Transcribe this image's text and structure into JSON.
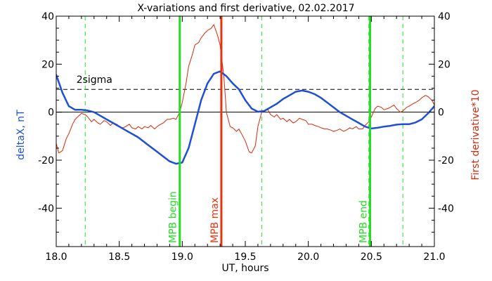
{
  "chart_data": {
    "type": "line",
    "title": "X-variations and first derivative, 02.02.2017",
    "xlabel": "UT, hours",
    "ylabel_left": "deltaX, nT",
    "ylabel_right": "First derivative*10",
    "xlim": [
      18.0,
      21.0
    ],
    "ylim": [
      -56,
      40
    ],
    "x_ticks": [
      18.0,
      18.5,
      19.0,
      19.5,
      20.0,
      20.5,
      21.0
    ],
    "x_tick_labels": [
      "18.0",
      "18.5",
      "19.0",
      "19.5",
      "20.0",
      "20.5",
      "21.0"
    ],
    "y_ticks": [
      -40,
      -20,
      0,
      20,
      40
    ],
    "y_tick_labels": [
      "-40",
      "-20",
      "0",
      "20",
      "40"
    ],
    "sigma_label": "2sigma",
    "sigma_level": 9.5,
    "zero_level": 0,
    "colors": {
      "deltaX": "#1f4fd6",
      "derivative": "#d62a0a",
      "mpb_boundary": "#22dd22",
      "mpb_max": "#e8330e",
      "dashed_marker": "#22dd22",
      "sigma_line": "#000000"
    },
    "dashed_markers_x": [
      18.23,
      18.98,
      19.63,
      20.48,
      20.75
    ],
    "event_lines": [
      {
        "label": "MPB begin",
        "x": 18.98,
        "kind": "mpb_boundary"
      },
      {
        "label": "MPB max",
        "x": 19.31,
        "kind": "mpb_max"
      },
      {
        "label": "MPB end",
        "x": 20.49,
        "kind": "mpb_boundary"
      }
    ],
    "series": [
      {
        "name": "deltaX",
        "x": [
          18.0,
          18.05,
          18.1,
          18.15,
          18.2,
          18.25,
          18.3,
          18.35,
          18.4,
          18.45,
          18.5,
          18.55,
          18.6,
          18.65,
          18.7,
          18.75,
          18.8,
          18.85,
          18.9,
          18.95,
          19.0,
          19.05,
          19.1,
          19.15,
          19.2,
          19.25,
          19.3,
          19.35,
          19.4,
          19.45,
          19.5,
          19.55,
          19.6,
          19.65,
          19.7,
          19.75,
          19.8,
          19.85,
          19.9,
          19.95,
          20.0,
          20.05,
          20.1,
          20.15,
          20.2,
          20.25,
          20.3,
          20.35,
          20.4,
          20.45,
          20.5,
          20.55,
          20.6,
          20.65,
          20.7,
          20.75,
          20.8,
          20.85,
          20.9,
          20.95,
          21.0
        ],
        "values": [
          15.5,
          8.0,
          2.5,
          1.0,
          1.0,
          0.7,
          0.0,
          -1.5,
          -3.0,
          -4.5,
          -6.0,
          -7.5,
          -9.0,
          -10.5,
          -12.5,
          -14.5,
          -16.5,
          -18.5,
          -20.5,
          -21.5,
          -21.0,
          -15.0,
          -5.0,
          5.0,
          12.0,
          16.0,
          17.0,
          15.0,
          12.0,
          9.5,
          5.0,
          1.5,
          0.2,
          0.5,
          2.0,
          3.5,
          5.5,
          7.0,
          8.5,
          9.0,
          8.5,
          7.5,
          6.0,
          4.0,
          2.0,
          0.0,
          -1.5,
          -3.0,
          -4.5,
          -6.0,
          -6.8,
          -6.5,
          -6.0,
          -5.7,
          -5.2,
          -5.0,
          -5.0,
          -4.3,
          -3.0,
          -0.5,
          2.5
        ]
      },
      {
        "name": "First derivative*10",
        "x": [
          18.0,
          18.02,
          18.05,
          18.08,
          18.1,
          18.13,
          18.15,
          18.18,
          18.2,
          18.23,
          18.25,
          18.28,
          18.3,
          18.33,
          18.35,
          18.38,
          18.4,
          18.43,
          18.45,
          18.48,
          18.5,
          18.53,
          18.55,
          18.58,
          18.6,
          18.63,
          18.65,
          18.68,
          18.7,
          18.73,
          18.75,
          18.78,
          18.8,
          18.83,
          18.85,
          18.88,
          18.9,
          18.93,
          18.95,
          18.98,
          19.0,
          19.03,
          19.05,
          19.08,
          19.1,
          19.13,
          19.15,
          19.18,
          19.2,
          19.23,
          19.25,
          19.28,
          19.3,
          19.33,
          19.35,
          19.38,
          19.4,
          19.43,
          19.45,
          19.48,
          19.5,
          19.53,
          19.55,
          19.58,
          19.6,
          19.63,
          19.65,
          19.68,
          19.7,
          19.73,
          19.75,
          19.78,
          19.8,
          19.83,
          19.85,
          19.88,
          19.9,
          19.93,
          19.95,
          19.98,
          20.0,
          20.03,
          20.05,
          20.08,
          20.1,
          20.13,
          20.15,
          20.18,
          20.2,
          20.23,
          20.25,
          20.28,
          20.3,
          20.33,
          20.35,
          20.38,
          20.4,
          20.43,
          20.45,
          20.48,
          20.5,
          20.53,
          20.55,
          20.58,
          20.6,
          20.63,
          20.65,
          20.68,
          20.7,
          20.73,
          20.75,
          20.78,
          20.8,
          20.83,
          20.85,
          20.88,
          20.9,
          20.93,
          20.95,
          20.98,
          21.0
        ],
        "values": [
          -13.0,
          -17.0,
          -16.0,
          -11.0,
          -9.0,
          -5.0,
          -3.0,
          -1.5,
          -0.5,
          -1.0,
          -2.0,
          -4.0,
          -3.0,
          -4.5,
          -5.0,
          -3.5,
          -4.0,
          -5.5,
          -4.5,
          -5.0,
          -6.0,
          -6.5,
          -6.0,
          -5.0,
          -6.5,
          -7.0,
          -6.0,
          -7.0,
          -6.0,
          -6.5,
          -5.5,
          -7.0,
          -6.0,
          -5.0,
          -4.5,
          -3.0,
          -3.0,
          -2.5,
          -3.0,
          0.0,
          4.0,
          12.0,
          19.0,
          24.0,
          28.0,
          29.0,
          31.0,
          33.0,
          34.0,
          35.0,
          36.5,
          32.0,
          28.0,
          15.0,
          0.0,
          -6.0,
          -6.5,
          -8.0,
          -7.0,
          -10.0,
          -12.0,
          -16.5,
          -17.0,
          -14.0,
          -6.0,
          0.0,
          0.5,
          1.0,
          -1.0,
          -2.0,
          -1.0,
          -3.0,
          -2.5,
          -4.0,
          -3.0,
          -4.5,
          -4.0,
          -2.5,
          -3.0,
          -3.5,
          -5.0,
          -5.0,
          -5.5,
          -6.0,
          -6.5,
          -7.0,
          -7.0,
          -7.5,
          -8.0,
          -7.5,
          -7.0,
          -8.0,
          -7.5,
          -6.5,
          -7.0,
          -6.0,
          -7.0,
          -7.0,
          -5.5,
          -4.0,
          -2.0,
          1.5,
          2.5,
          2.0,
          1.0,
          1.5,
          2.0,
          3.0,
          1.5,
          0.0,
          0.5,
          2.0,
          2.5,
          3.5,
          4.0,
          5.0,
          6.0,
          7.0,
          6.5,
          5.0,
          3.0
        ]
      }
    ]
  }
}
